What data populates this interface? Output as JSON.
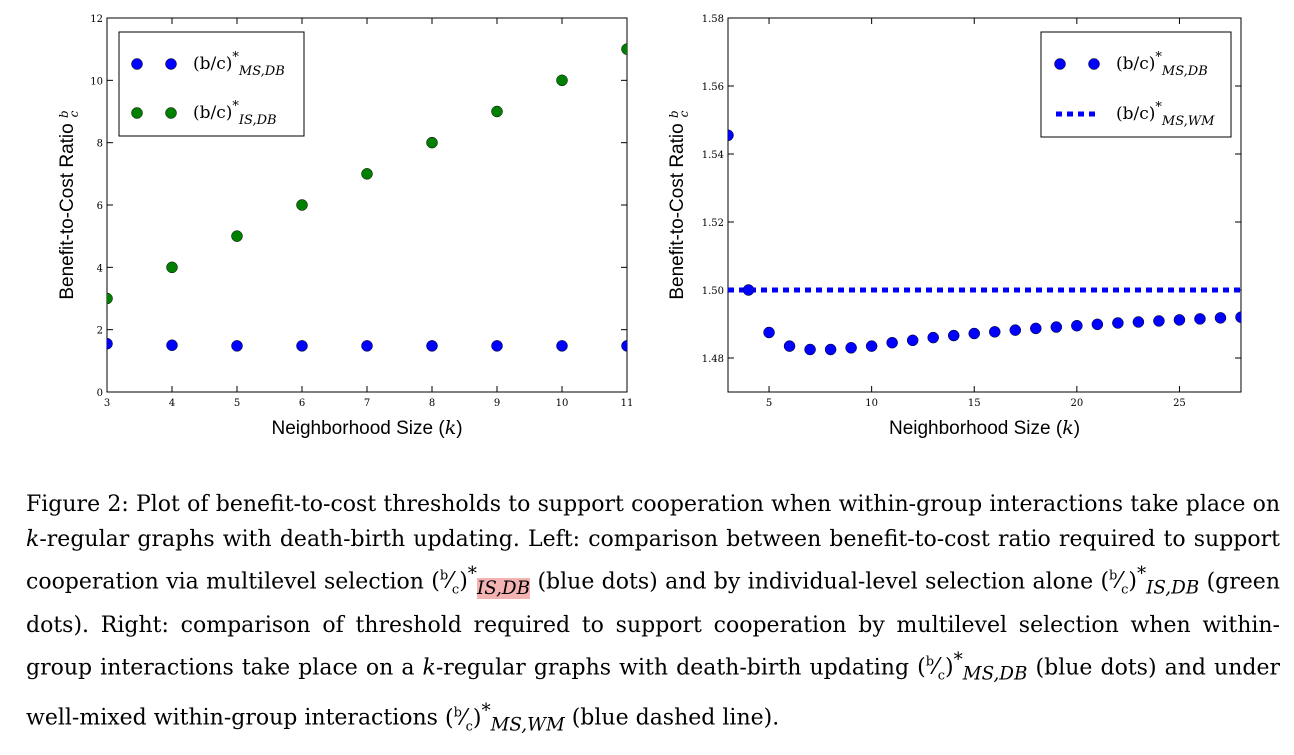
{
  "chart_data": [
    {
      "type": "scatter",
      "xlabel": "Neighborhood Size (k)",
      "ylabel": "Benefit-to-Cost Ratio b/c",
      "xlim": [
        3,
        11
      ],
      "ylim": [
        0,
        12
      ],
      "xticks": [
        "3",
        "4",
        "5",
        "6",
        "7",
        "8",
        "9",
        "10",
        "11"
      ],
      "yticks": [
        "0",
        "2",
        "4",
        "6",
        "8",
        "10",
        "12"
      ],
      "legend_position": "top-left",
      "series": [
        {
          "name": "(b/c)*_{MS,DB}",
          "color": "#0000ff",
          "x": [
            3,
            4,
            5,
            6,
            7,
            8,
            9,
            10,
            11
          ],
          "y": [
            1.55,
            1.5,
            1.48,
            1.48,
            1.48,
            1.48,
            1.48,
            1.48,
            1.48
          ]
        },
        {
          "name": "(b/c)*_{IS,DB}",
          "color": "#007f00",
          "x": [
            3,
            4,
            5,
            6,
            7,
            8,
            9,
            10,
            11
          ],
          "y": [
            3,
            4,
            5,
            6,
            7,
            8,
            9,
            10,
            11
          ]
        }
      ]
    },
    {
      "type": "scatter",
      "xlabel": "Neighborhood Size (k)",
      "ylabel": "Benefit-to-Cost Ratio b/c",
      "xlim": [
        3,
        28
      ],
      "ylim": [
        1.47,
        1.58
      ],
      "xticks": [
        "5",
        "10",
        "15",
        "20",
        "25"
      ],
      "yticks": [
        "1.48",
        "1.50",
        "1.52",
        "1.54",
        "1.56",
        "1.58"
      ],
      "legend_position": "top-right",
      "series": [
        {
          "name": "(b/c)*_{MS,DB}",
          "color": "#0000ff",
          "x": [
            3,
            4,
            5,
            6,
            7,
            8,
            9,
            10,
            11,
            12,
            13,
            14,
            15,
            16,
            17,
            18,
            19,
            20,
            21,
            22,
            23,
            24,
            25,
            26,
            27,
            28
          ],
          "y": [
            1.5455,
            1.5,
            1.4875,
            1.4835,
            1.4825,
            1.4825,
            1.483,
            1.4835,
            1.4845,
            1.4852,
            1.486,
            1.4866,
            1.4872,
            1.4877,
            1.4882,
            1.4887,
            1.4891,
            1.4895,
            1.4899,
            1.4903,
            1.4906,
            1.4909,
            1.4912,
            1.4915,
            1.4918,
            1.492
          ]
        },
        {
          "name": "(b/c)*_{MS,WM}",
          "color": "#0000ff",
          "style": "dashed",
          "value": 1.5
        }
      ]
    }
  ],
  "caption": {
    "p1": "Figure 2: Plot of benefit-to-cost thresholds to support cooperation when within-group interactions take place on ",
    "k1": "k",
    "p2": "-regular graphs with death-birth updating. Left: comparison between benefit-to-cost ratio required to support cooperation via multilevel selection ",
    "p3": " (blue dots) and by individual-level selection alone ",
    "p4": " (green dots). Right: comparison of threshold required to support cooperation by multilevel selection when within-group interactions take place on a ",
    "k2": "k",
    "p5": "-regular graphs with death-birth updating ",
    "p6": " (blue dots) and under well-mixed within-group interactions ",
    "p7": " (blue dashed line).",
    "sub_ms_db": "MS,DB",
    "sub_is_db": "IS,DB",
    "sub_ms_wm": "MS,WM"
  }
}
